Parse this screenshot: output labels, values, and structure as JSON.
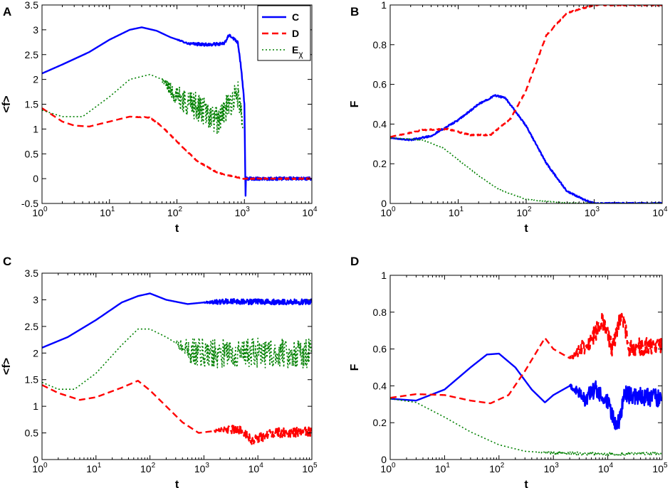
{
  "colors": {
    "C": "#0000ff",
    "D": "#ff0000",
    "E": "#008000"
  },
  "chart_data": [
    {
      "panel": "A",
      "type": "line",
      "title": "",
      "xlabel": "t",
      "ylabel": "<f>",
      "xscale": "log",
      "xlim": [
        1,
        10000
      ],
      "ylim": [
        -0.5,
        3.5
      ],
      "xticks": [
        1,
        10,
        100,
        1000,
        10000
      ],
      "xtick_labels": [
        [
          "10",
          "0"
        ],
        [
          "10",
          "1"
        ],
        [
          "10",
          "2"
        ],
        [
          "10",
          "3"
        ],
        [
          "10",
          "4"
        ]
      ],
      "yticks": [
        -0.5,
        0,
        0.5,
        1,
        1.5,
        2,
        2.5,
        3,
        3.5
      ],
      "ytick_labels": [
        "-0.5",
        "0",
        "0.5",
        "1",
        "1.5",
        "2",
        "2.5",
        "3",
        "3.5"
      ],
      "legend": {
        "position": "top-right",
        "entries": [
          {
            "key": "C",
            "label": "C",
            "sub": ""
          },
          {
            "key": "D",
            "label": "D",
            "sub": ""
          },
          {
            "key": "E",
            "label": "E",
            "sub": "χ"
          }
        ]
      },
      "series": [
        {
          "key": "C",
          "name": "C",
          "style": "solid",
          "noise": 0.03,
          "noise_from": 100,
          "points": [
            [
              1,
              2.12
            ],
            [
              2,
              2.3
            ],
            [
              5,
              2.55
            ],
            [
              10,
              2.8
            ],
            [
              20,
              3.0
            ],
            [
              30,
              3.05
            ],
            [
              50,
              2.98
            ],
            [
              80,
              2.85
            ],
            [
              150,
              2.72
            ],
            [
              300,
              2.7
            ],
            [
              500,
              2.72
            ],
            [
              600,
              2.9
            ],
            [
              800,
              2.75
            ],
            [
              900,
              2.2
            ],
            [
              1000,
              1.5
            ],
            [
              1040,
              -0.38
            ],
            [
              1050,
              0
            ],
            [
              10000,
              0
            ]
          ]
        },
        {
          "key": "D",
          "name": "D",
          "style": "dashed",
          "noise": 0.01,
          "noise_from": 20,
          "points": [
            [
              1,
              1.42
            ],
            [
              2,
              1.15
            ],
            [
              3,
              1.07
            ],
            [
              5,
              1.05
            ],
            [
              10,
              1.15
            ],
            [
              20,
              1.25
            ],
            [
              40,
              1.23
            ],
            [
              60,
              1.05
            ],
            [
              100,
              0.75
            ],
            [
              200,
              0.35
            ],
            [
              400,
              0.12
            ],
            [
              700,
              0.04
            ],
            [
              1000,
              0
            ],
            [
              10000,
              0
            ]
          ]
        },
        {
          "key": "E",
          "name": "Eχ",
          "style": "dotted",
          "noise": 0.28,
          "noise_from": 60,
          "points": [
            [
              1,
              1.38
            ],
            [
              2,
              1.25
            ],
            [
              4,
              1.25
            ],
            [
              10,
              1.65
            ],
            [
              20,
              2.0
            ],
            [
              40,
              2.1
            ],
            [
              60,
              2.0
            ],
            [
              100,
              1.65
            ],
            [
              200,
              1.45
            ],
            [
              400,
              1.15
            ],
            [
              600,
              1.5
            ],
            [
              800,
              1.7
            ],
            [
              950,
              1.0
            ]
          ]
        }
      ]
    },
    {
      "panel": "B",
      "type": "line",
      "title": "",
      "xlabel": "t",
      "ylabel": "F",
      "xscale": "log",
      "xlim": [
        1,
        10000
      ],
      "ylim": [
        0,
        1
      ],
      "xticks": [
        1,
        10,
        100,
        1000,
        10000
      ],
      "xtick_labels": [
        [
          "10",
          "0"
        ],
        [
          "10",
          "1"
        ],
        [
          "10",
          "2"
        ],
        [
          "10",
          "3"
        ],
        [
          "10",
          "4"
        ]
      ],
      "yticks": [
        0,
        0.2,
        0.4,
        0.6,
        0.8,
        1
      ],
      "ytick_labels": [
        "0",
        "0.2",
        "0.4",
        "0.6",
        "0.8",
        "1"
      ],
      "series": [
        {
          "key": "C",
          "name": "C",
          "style": "solid",
          "noise": 0.004,
          "noise_from": 1,
          "points": [
            [
              1,
              0.33
            ],
            [
              2,
              0.32
            ],
            [
              4,
              0.34
            ],
            [
              10,
              0.42
            ],
            [
              20,
              0.5
            ],
            [
              35,
              0.545
            ],
            [
              50,
              0.53
            ],
            [
              100,
              0.39
            ],
            [
              200,
              0.2
            ],
            [
              400,
              0.06
            ],
            [
              700,
              0.02
            ],
            [
              1000,
              0
            ],
            [
              10000,
              0
            ]
          ]
        },
        {
          "key": "D",
          "name": "D",
          "style": "dashed",
          "noise": 0.003,
          "noise_from": 1,
          "points": [
            [
              1,
              0.335
            ],
            [
              3,
              0.37
            ],
            [
              7,
              0.375
            ],
            [
              15,
              0.345
            ],
            [
              30,
              0.345
            ],
            [
              60,
              0.43
            ],
            [
              100,
              0.57
            ],
            [
              200,
              0.85
            ],
            [
              400,
              0.96
            ],
            [
              1000,
              1.0
            ],
            [
              10000,
              1.0
            ]
          ]
        },
        {
          "key": "E",
          "name": "Eχ",
          "style": "dotted",
          "noise": 0.002,
          "noise_from": 1,
          "points": [
            [
              1,
              0.33
            ],
            [
              3,
              0.32
            ],
            [
              6,
              0.28
            ],
            [
              10,
              0.22
            ],
            [
              20,
              0.14
            ],
            [
              40,
              0.07
            ],
            [
              100,
              0.02
            ],
            [
              300,
              0.005
            ],
            [
              1000,
              0
            ],
            [
              10000,
              0
            ]
          ]
        }
      ]
    },
    {
      "panel": "C",
      "type": "line",
      "title": "",
      "xlabel": "t",
      "ylabel": "<f>",
      "xscale": "log",
      "xlim": [
        1,
        100000
      ],
      "ylim": [
        0,
        3.5
      ],
      "xticks": [
        1,
        10,
        100,
        1000,
        10000,
        100000
      ],
      "xtick_labels": [
        [
          "10",
          "0"
        ],
        [
          "10",
          "1"
        ],
        [
          "10",
          "2"
        ],
        [
          "10",
          "3"
        ],
        [
          "10",
          "4"
        ],
        [
          "10",
          "5"
        ]
      ],
      "yticks": [
        0,
        0.5,
        1,
        1.5,
        2,
        2.5,
        3,
        3.5
      ],
      "ytick_labels": [
        "0",
        "0.5",
        "1",
        "1.5",
        "2",
        "2.5",
        "3",
        "3.5"
      ],
      "series": [
        {
          "key": "C",
          "name": "C",
          "style": "solid",
          "noise": 0.05,
          "noise_from": 1000,
          "points": [
            [
              1,
              2.1
            ],
            [
              3,
              2.3
            ],
            [
              10,
              2.62
            ],
            [
              30,
              2.95
            ],
            [
              60,
              3.07
            ],
            [
              100,
              3.12
            ],
            [
              200,
              3.0
            ],
            [
              500,
              2.92
            ],
            [
              1000,
              2.95
            ],
            [
              3000,
              2.97
            ],
            [
              10000,
              2.96
            ],
            [
              100000,
              2.96
            ]
          ]
        },
        {
          "key": "D",
          "name": "D",
          "style": "dashed",
          "noise": 0.09,
          "noise_from": 1500,
          "points": [
            [
              1,
              1.4
            ],
            [
              2,
              1.25
            ],
            [
              5,
              1.12
            ],
            [
              10,
              1.17
            ],
            [
              30,
              1.35
            ],
            [
              60,
              1.48
            ],
            [
              100,
              1.3
            ],
            [
              200,
              1.0
            ],
            [
              400,
              0.7
            ],
            [
              800,
              0.5
            ],
            [
              2000,
              0.55
            ],
            [
              5000,
              0.55
            ],
            [
              8000,
              0.35
            ],
            [
              20000,
              0.5
            ],
            [
              100000,
              0.52
            ]
          ]
        },
        {
          "key": "E",
          "name": "Eχ",
          "style": "dotted",
          "noise": 0.28,
          "noise_from": 300,
          "points": [
            [
              1,
              1.45
            ],
            [
              2,
              1.32
            ],
            [
              4,
              1.32
            ],
            [
              10,
              1.62
            ],
            [
              30,
              2.15
            ],
            [
              60,
              2.45
            ],
            [
              100,
              2.45
            ],
            [
              200,
              2.3
            ],
            [
              500,
              2.05
            ],
            [
              1000,
              2.0
            ],
            [
              10000,
              2.0
            ],
            [
              100000,
              2.0
            ]
          ]
        }
      ]
    },
    {
      "panel": "D",
      "type": "line",
      "title": "",
      "xlabel": "t",
      "ylabel": "F",
      "xscale": "log",
      "xlim": [
        1,
        100000
      ],
      "ylim": [
        0,
        1
      ],
      "xticks": [
        1,
        10,
        100,
        1000,
        10000,
        100000
      ],
      "xtick_labels": [
        [
          "10",
          "0"
        ],
        [
          "10",
          "1"
        ],
        [
          "10",
          "2"
        ],
        [
          "10",
          "3"
        ],
        [
          "10",
          "4"
        ],
        [
          "10",
          "5"
        ]
      ],
      "yticks": [
        0,
        0.2,
        0.4,
        0.6,
        0.8,
        1
      ],
      "ytick_labels": [
        "0",
        "0.2",
        "0.4",
        "0.6",
        "0.8",
        "1"
      ],
      "series": [
        {
          "key": "C",
          "name": "C",
          "style": "solid",
          "noise": 0.05,
          "noise_from": 2000,
          "points": [
            [
              1,
              0.33
            ],
            [
              3,
              0.32
            ],
            [
              10,
              0.38
            ],
            [
              30,
              0.5
            ],
            [
              60,
              0.57
            ],
            [
              100,
              0.575
            ],
            [
              200,
              0.5
            ],
            [
              400,
              0.38
            ],
            [
              700,
              0.31
            ],
            [
              1000,
              0.35
            ],
            [
              2000,
              0.4
            ],
            [
              4000,
              0.33
            ],
            [
              6000,
              0.38
            ],
            [
              10000,
              0.3
            ],
            [
              15000,
              0.17
            ],
            [
              20000,
              0.35
            ],
            [
              100000,
              0.33
            ]
          ]
        },
        {
          "key": "D",
          "name": "D",
          "style": "dashed",
          "noise": 0.05,
          "noise_from": 2000,
          "points": [
            [
              1,
              0.335
            ],
            [
              3,
              0.355
            ],
            [
              10,
              0.35
            ],
            [
              30,
              0.32
            ],
            [
              70,
              0.305
            ],
            [
              150,
              0.35
            ],
            [
              300,
              0.48
            ],
            [
              700,
              0.66
            ],
            [
              1000,
              0.6
            ],
            [
              2000,
              0.55
            ],
            [
              5000,
              0.65
            ],
            [
              8000,
              0.75
            ],
            [
              12000,
              0.6
            ],
            [
              18000,
              0.8
            ],
            [
              25000,
              0.6
            ],
            [
              100000,
              0.63
            ]
          ]
        },
        {
          "key": "E",
          "name": "Eχ",
          "style": "dotted",
          "noise": 0.008,
          "noise_from": 500,
          "points": [
            [
              1,
              0.33
            ],
            [
              3,
              0.31
            ],
            [
              10,
              0.23
            ],
            [
              30,
              0.15
            ],
            [
              100,
              0.08
            ],
            [
              300,
              0.045
            ],
            [
              1000,
              0.035
            ],
            [
              10000,
              0.03
            ],
            [
              100000,
              0.035
            ]
          ]
        }
      ]
    }
  ]
}
